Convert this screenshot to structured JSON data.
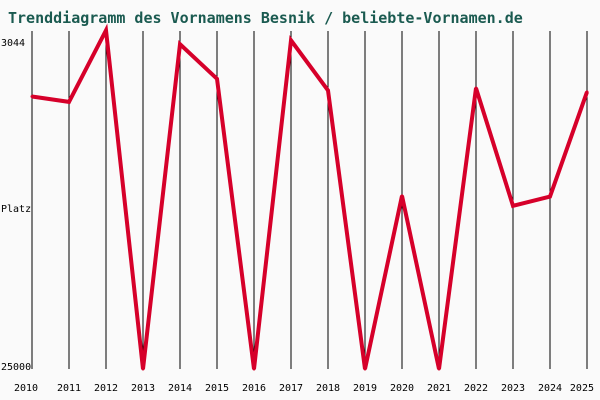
{
  "chart_data": {
    "type": "line",
    "title": "Trenddiagramm des Vornamens Besnik / beliebte-Vornamen.de",
    "xlabel": "",
    "ylabel": "Platz",
    "y_inverted": true,
    "ylim": [
      25000,
      3044
    ],
    "y_tick_labels": [
      "3044",
      "25000"
    ],
    "grid": "vertical",
    "legend": "none",
    "x": [
      "2010",
      "2011",
      "2012",
      "2013",
      "2014",
      "2015",
      "2016",
      "2017",
      "2018",
      "2019",
      "2020",
      "2021",
      "2022",
      "2023",
      "2024",
      "2025"
    ],
    "series": [
      {
        "color": "#d6002a",
        "values": [
          7300,
          7650,
          3000,
          25000,
          3900,
          6150,
          25000,
          3650,
          6900,
          25000,
          13750,
          25000,
          6750,
          14400,
          13800,
          7000
        ]
      }
    ]
  }
}
